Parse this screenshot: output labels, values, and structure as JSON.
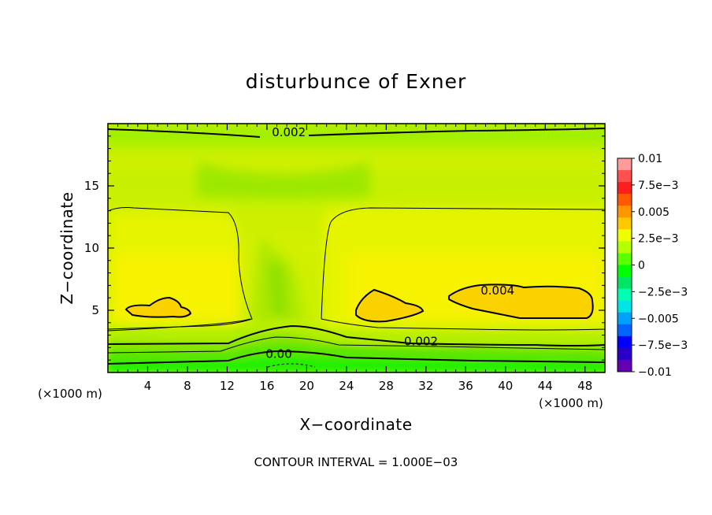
{
  "chart_data": {
    "type": "contour",
    "title": "disturbunce of Exner",
    "xlabel": "X−coordinate",
    "ylabel": "Z−coordinate",
    "x_unit_left": "(×1000 m)",
    "x_unit_right": "(×1000 m)",
    "xlim": [
      0,
      50
    ],
    "ylim": [
      0,
      20
    ],
    "xticks": [
      4,
      8,
      12,
      16,
      20,
      24,
      28,
      32,
      36,
      40,
      44,
      48
    ],
    "yticks": [
      5,
      10,
      15
    ],
    "colorbar": {
      "labels": [
        "0.01",
        "7.5e−3",
        "0.005",
        "2.5e−3",
        "0",
        "−2.5e−3",
        "−0.005",
        "−7.5e−3",
        "−0.01"
      ],
      "colors": [
        "#ff9b9b",
        "#ff5050",
        "#ff1e1e",
        "#ff5a00",
        "#ff9600",
        "#ffc800",
        "#f0ff00",
        "#b4ff00",
        "#5aff00",
        "#00ff00",
        "#00e664",
        "#00ffb4",
        "#00e6e6",
        "#00a0ff",
        "#0064ff",
        "#0000ff",
        "#2800c8",
        "#6400b4"
      ]
    },
    "contour_labels": [
      {
        "text": "0.002",
        "x": 18.2,
        "z": 19.1
      },
      {
        "text": "0.004",
        "x": 39.2,
        "z": 6.4
      },
      {
        "text": "0.002",
        "x": 31.5,
        "z": 2.3
      },
      {
        "text": "0.00",
        "x": 17.2,
        "z": 1.3
      }
    ],
    "note": "CONTOUR INTERVAL = 1.000E−03"
  }
}
